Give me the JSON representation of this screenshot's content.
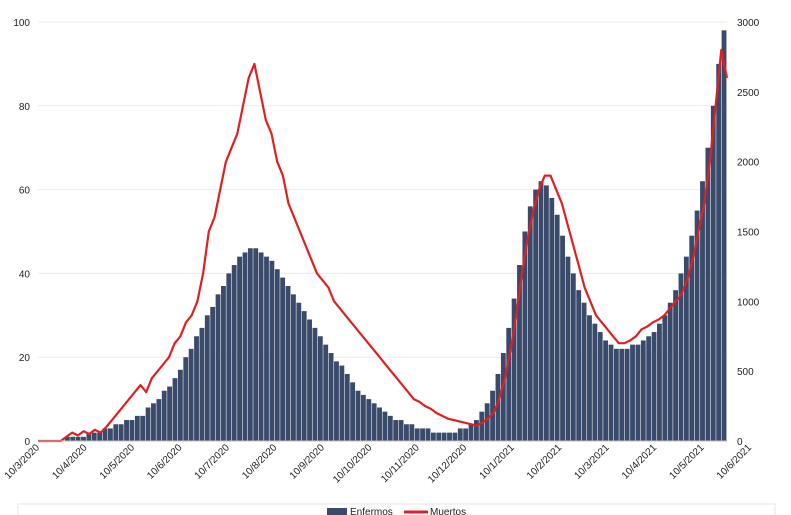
{
  "chart_data": {
    "type": "bar+line",
    "title": "",
    "x_tick_labels": [
      "10/3/2020",
      "10/4/2020",
      "10/5/2020",
      "10/6/2020",
      "10/7/2020",
      "10/8/2020",
      "10/9/2020",
      "10/10/2020",
      "10/11/2020",
      "10/12/2020",
      "10/1/2021",
      "10/2/2021",
      "10/3/2021",
      "10/4/2021",
      "10/5/2021",
      "10/6/2021"
    ],
    "y_left": {
      "ylim": [
        0,
        100
      ],
      "ticks": [
        "0",
        "20",
        "40",
        "60",
        "80",
        "100"
      ]
    },
    "y_right": {
      "ylim": [
        0,
        3000
      ],
      "ticks": [
        "0",
        "500",
        "1000",
        "1500",
        "2000",
        "2500",
        "3000"
      ]
    },
    "grid": "horizontal",
    "legend_position": "bottom",
    "series": [
      {
        "name": "Enfermos",
        "type": "bar",
        "axis": "left",
        "color": "#3a4a6b",
        "values": [
          0,
          0,
          0,
          0,
          0,
          1,
          1,
          1,
          1,
          2,
          2,
          2,
          3,
          3,
          4,
          4,
          5,
          5,
          6,
          6,
          8,
          9,
          10,
          12,
          13,
          15,
          17,
          20,
          22,
          25,
          27,
          30,
          32,
          35,
          37,
          40,
          42,
          44,
          45,
          46,
          46,
          45,
          44,
          43,
          41,
          39,
          37,
          35,
          33,
          31,
          29,
          27,
          25,
          23,
          21,
          19,
          18,
          16,
          14,
          12,
          11,
          10,
          9,
          8,
          7,
          6,
          5,
          5,
          4,
          4,
          3,
          3,
          3,
          2,
          2,
          2,
          2,
          2,
          3,
          3,
          4,
          5,
          7,
          9,
          12,
          16,
          21,
          27,
          34,
          42,
          50,
          56,
          60,
          62,
          61,
          58,
          54,
          49,
          44,
          40,
          36,
          33,
          30,
          28,
          26,
          24,
          23,
          22,
          22,
          22,
          23,
          23,
          24,
          25,
          26,
          28,
          30,
          33,
          36,
          40,
          44,
          49,
          55,
          62,
          70,
          80,
          90,
          98
        ]
      },
      {
        "name": "Muertos",
        "type": "line",
        "axis": "right",
        "color": "#e02020",
        "values": [
          0,
          0,
          0,
          0,
          0,
          30,
          60,
          40,
          70,
          50,
          80,
          60,
          100,
          150,
          200,
          250,
          300,
          350,
          400,
          350,
          450,
          500,
          550,
          600,
          700,
          750,
          850,
          900,
          1000,
          1200,
          1500,
          1600,
          1800,
          2000,
          2100,
          2200,
          2400,
          2600,
          2700,
          2500,
          2300,
          2200,
          2000,
          1900,
          1700,
          1600,
          1500,
          1400,
          1300,
          1200,
          1150,
          1100,
          1000,
          950,
          900,
          850,
          800,
          750,
          700,
          650,
          600,
          550,
          500,
          450,
          400,
          350,
          300,
          280,
          250,
          230,
          200,
          180,
          160,
          150,
          140,
          130,
          120,
          110,
          130,
          160,
          200,
          300,
          450,
          650,
          900,
          1200,
          1450,
          1650,
          1800,
          1900,
          1900,
          1800,
          1700,
          1550,
          1400,
          1250,
          1100,
          1000,
          900,
          850,
          800,
          750,
          700,
          700,
          720,
          750,
          800,
          820,
          850,
          870,
          900,
          950,
          1000,
          1050,
          1150,
          1300,
          1500,
          1700,
          2000,
          2400,
          2800,
          2600
        ]
      }
    ]
  }
}
